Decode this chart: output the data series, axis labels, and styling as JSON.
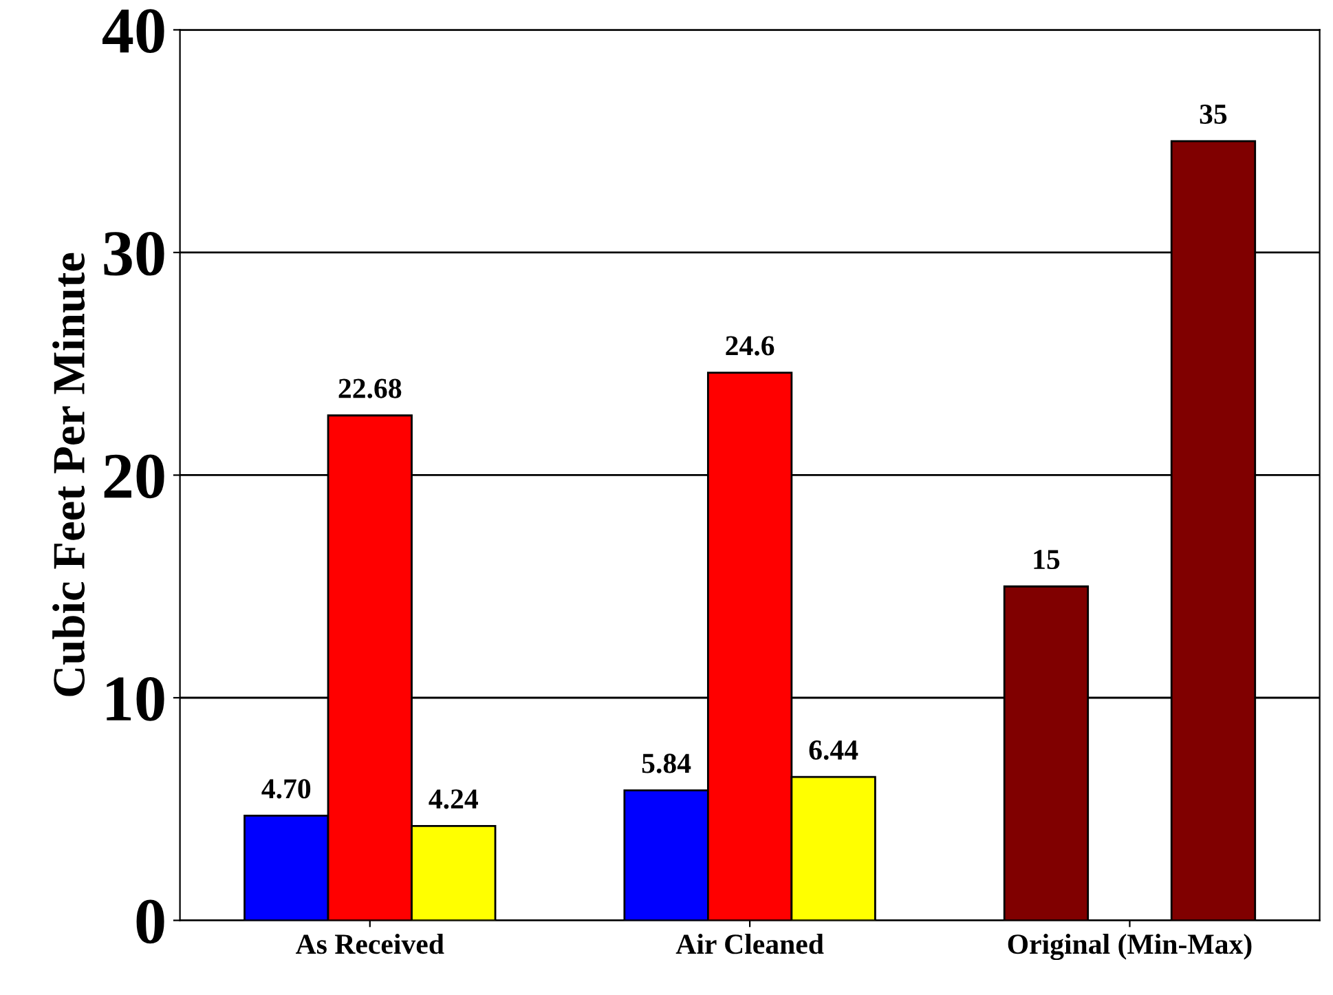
{
  "chart_data": {
    "type": "bar",
    "ylabel": "Cubic Feet Per Minute",
    "categories": [
      "As Received",
      "Air Cleaned",
      "Original (Min-Max)"
    ],
    "series": [
      {
        "colors": [
          "#0000ff",
          "#0000ff",
          "#800000"
        ],
        "values": [
          4.7,
          5.84,
          15
        ],
        "value_labels": [
          "4.70",
          "5.84",
          "15"
        ]
      },
      {
        "color": "#ff0000",
        "values": [
          22.68,
          24.6,
          null
        ],
        "value_labels": [
          "22.68",
          "24.6",
          null
        ]
      },
      {
        "colors": [
          "#ffff00",
          "#ffff00",
          "#800000"
        ],
        "values": [
          4.24,
          6.44,
          35
        ],
        "value_labels": [
          "4.24",
          "6.44",
          "35"
        ]
      }
    ],
    "ylim": [
      0,
      40
    ],
    "yticks": [
      0,
      10,
      20,
      30,
      40
    ],
    "grid": "y",
    "legend": false
  }
}
